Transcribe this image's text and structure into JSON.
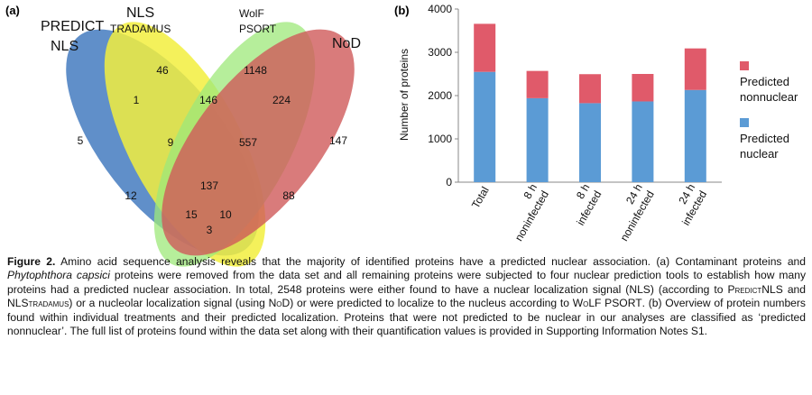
{
  "panel_a": {
    "label": "(a)",
    "set_labels": {
      "predict_line1": "PREDICT",
      "predict_line2": "NLS",
      "nls_line1": "NLS",
      "nls_line2": "TRADAMUS",
      "wolf_line1": "WolF",
      "wolf_line2": "PSORT",
      "nod": "NoD"
    },
    "counts": {
      "predict_only": "5",
      "nls_only": "46",
      "wolf_only": "1148",
      "nod_only": "147",
      "predict_nls": "1",
      "nls_wolf": "146",
      "wolf_nod": "224",
      "predict_nls_wolf": "9",
      "nls_wolf_nod": "557",
      "predict_wolf": "12",
      "all_four": "137",
      "nls_nod": "88",
      "predict_wolf_nod": "15",
      "predict_nls_nod": "10",
      "predict_nod": "3"
    },
    "colors": {
      "predict": "#4a7fc1",
      "nls": "#f2ee3e",
      "wolf": "#9ee87a",
      "nod": "#cf5a5a"
    }
  },
  "panel_b": {
    "label": "(b)",
    "chart_data": {
      "type": "bar",
      "stacked": true,
      "categories": [
        [
          "Total"
        ],
        [
          "8 h",
          "noninfected"
        ],
        [
          "8 h",
          "infected"
        ],
        [
          "24 h",
          "noninfected"
        ],
        [
          "24 h",
          "infected"
        ]
      ],
      "series": [
        {
          "name": "Predicted nuclear",
          "legend_lines": [
            "Predicted",
            "nuclear"
          ],
          "color": "#5b9bd5",
          "values": [
            2548,
            1940,
            1825,
            1865,
            2130
          ]
        },
        {
          "name": "Predicted nonnuclear",
          "legend_lines": [
            "Predicted",
            "nonnuclear"
          ],
          "color": "#e05a6a",
          "values": [
            1110,
            630,
            670,
            635,
            960
          ]
        }
      ],
      "ylabel": "Number of proteins",
      "ylim": [
        0,
        4000
      ],
      "yticks": [
        0,
        1000,
        2000,
        3000,
        4000
      ],
      "legend_position": "right"
    }
  },
  "caption": {
    "title": "Figure 2.",
    "p1": " Amino acid sequence analysis reveals that the majority of identified proteins have a predicted nuclear association. (a) Contaminant proteins and ",
    "species": "Phytophthora capsici",
    "p2": " proteins were removed from the data set and all remaining proteins were subjected to four nuclear prediction tools to establish how many proteins had a predicted nuclear association. In total, 2548 proteins were either found to have a nuclear localization signal (NLS) (according to ",
    "tool1": "PredictNLS",
    "p3": " and ",
    "tool2": "NLStradamus",
    "p4": ") or a nucleolar localization signal (using ",
    "tool3": "NoD",
    "p5": ") or were predicted to localize to the nucleus according to ",
    "tool4": "WoLF PSORT",
    "p6": ". (b) Overview of protein numbers found within individual treatments and their predicted localization. Proteins that were not predicted to be nuclear in our analyses are classified as ‘predicted nonnuclear’. The full list of proteins found within the data set along with their quantification values is provided in Supporting Information Notes S1."
  }
}
